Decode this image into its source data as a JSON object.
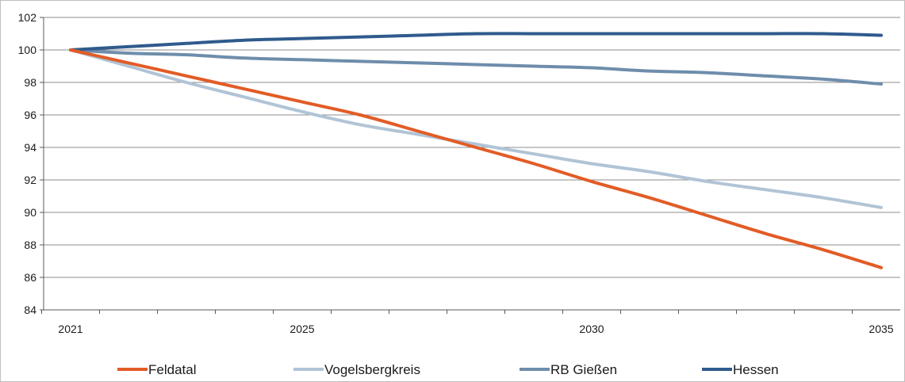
{
  "chart_data": {
    "type": "line",
    "title": "",
    "xlabel": "",
    "ylabel": "",
    "xlim": [
      2021,
      2035
    ],
    "ylim": [
      84,
      102
    ],
    "x_ticks": [
      "2021",
      "2025",
      "2030",
      "2035"
    ],
    "y_ticks": [
      "84",
      "86",
      "88",
      "90",
      "92",
      "94",
      "96",
      "98",
      "100",
      "102"
    ],
    "grid": "horizontal",
    "legend_position": "bottom",
    "x": [
      2021,
      2022,
      2023,
      2024,
      2025,
      2026,
      2027,
      2028,
      2029,
      2030,
      2031,
      2032,
      2033,
      2034,
      2035
    ],
    "series": [
      {
        "name": "Feldatal",
        "color": "#e25c26",
        "values": [
          100,
          99.2,
          98.4,
          97.6,
          96.8,
          96.0,
          95.0,
          94.0,
          93.0,
          91.9,
          90.9,
          89.8,
          88.7,
          87.7,
          86.6
        ]
      },
      {
        "name": "Vogelsbergkreis",
        "color": "#b1c4d6",
        "values": [
          100,
          99.0,
          98.0,
          97.1,
          96.2,
          95.4,
          94.8,
          94.2,
          93.6,
          93.0,
          92.5,
          91.9,
          91.4,
          90.9,
          90.3
        ]
      },
      {
        "name": "RB Gießen",
        "color": "#6e8dab",
        "values": [
          100,
          99.8,
          99.7,
          99.5,
          99.4,
          99.3,
          99.2,
          99.1,
          99.0,
          98.9,
          98.7,
          98.6,
          98.4,
          98.2,
          97.9
        ]
      },
      {
        "name": "Hessen",
        "color": "#2f5b8d",
        "values": [
          100,
          100.2,
          100.4,
          100.6,
          100.7,
          100.8,
          100.9,
          101.0,
          101.0,
          101.0,
          101.0,
          101.0,
          101.0,
          101.0,
          100.9
        ]
      }
    ]
  }
}
